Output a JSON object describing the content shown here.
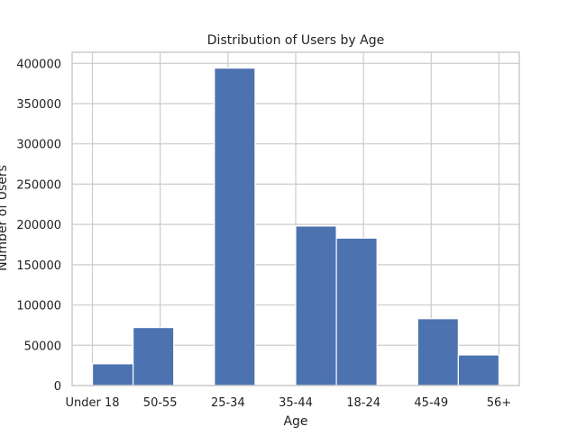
{
  "chart_data": {
    "type": "bar",
    "title": "Distribution of Users by Age",
    "xlabel": "Age",
    "ylabel": "Number of Users",
    "x_ticks": [
      "Under 18",
      "50-55",
      "25-34",
      "35-44",
      "18-24",
      "45-49",
      "56+"
    ],
    "bins": [
      {
        "x_start": 0.0,
        "x_end": 0.6,
        "value": 27000
      },
      {
        "x_start": 0.6,
        "x_end": 1.2,
        "value": 72000
      },
      {
        "x_start": 1.2,
        "x_end": 1.8,
        "value": 0
      },
      {
        "x_start": 1.8,
        "x_end": 2.4,
        "value": 394000
      },
      {
        "x_start": 2.4,
        "x_end": 3.0,
        "value": 0
      },
      {
        "x_start": 3.0,
        "x_end": 3.6,
        "value": 198000
      },
      {
        "x_start": 3.6,
        "x_end": 4.2,
        "value": 183000
      },
      {
        "x_start": 4.2,
        "x_end": 4.8,
        "value": 0
      },
      {
        "x_start": 4.8,
        "x_end": 5.4,
        "value": 83000
      },
      {
        "x_start": 5.4,
        "x_end": 6.0,
        "value": 38000
      }
    ],
    "y_ticks": [
      0,
      50000,
      100000,
      150000,
      200000,
      250000,
      300000,
      350000,
      400000
    ],
    "xlim": [
      -0.3,
      6.3
    ],
    "ylim": [
      0,
      413700
    ],
    "grid": true,
    "colors": {
      "bar": "#4C72B0",
      "grid": "#cccccc",
      "frame": "#cccccc"
    }
  }
}
